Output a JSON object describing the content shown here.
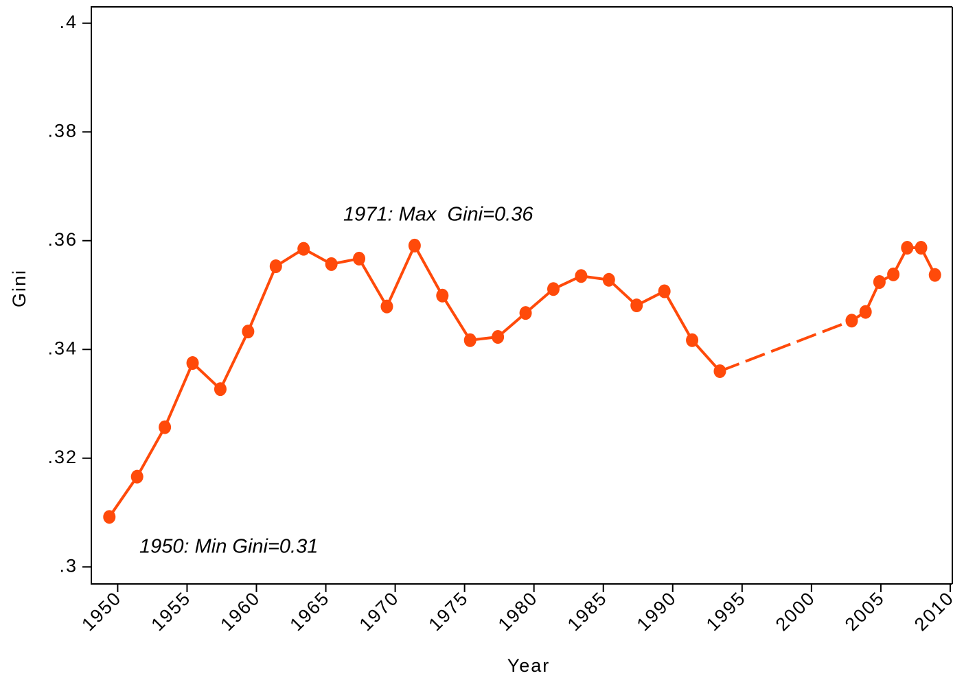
{
  "chart_data": {
    "type": "line",
    "x_label": "Year",
    "y_label": "Gini",
    "annotations": [
      "1971: Max  Gini=0.36",
      "1950: Min Gini=0.31"
    ],
    "xlim": [
      1948.1,
      2010.2
    ],
    "xticks": [
      1950,
      1955,
      1960,
      1965,
      1970,
      1975,
      1980,
      1985,
      1990,
      1995,
      2000,
      2005,
      2010
    ],
    "ylim": [
      0.297,
      0.403
    ],
    "yticks": [
      {
        "value": 0.3,
        "label": ".3"
      },
      {
        "value": 0.32,
        "label": ".32"
      },
      {
        "value": 0.34,
        "label": ".34"
      },
      {
        "value": 0.36,
        "label": ".36"
      },
      {
        "value": 0.38,
        "label": ".38"
      },
      {
        "value": 0.4,
        "label": ".4"
      }
    ],
    "grid": false,
    "series": [
      {
        "name": "Gini",
        "color": "#ff4a0a",
        "x": [
          1949.4,
          1951.4,
          1953.4,
          1955.4,
          1957.4,
          1959.4,
          1961.4,
          1963.4,
          1965.4,
          1967.4,
          1969.4,
          1971.4,
          1973.4,
          1975.4,
          1977.4,
          1979.4,
          1981.4,
          1983.4,
          1985.4,
          1987.4,
          1989.4,
          1991.4,
          1993.4,
          2002.9,
          2003.9,
          2004.9,
          2005.9,
          2006.9,
          2007.9,
          2008.9
        ],
        "values": [
          0.3092,
          0.3166,
          0.3257,
          0.3375,
          0.3327,
          0.3433,
          0.3553,
          0.3585,
          0.3557,
          0.3567,
          0.3479,
          0.3591,
          0.3499,
          0.3417,
          0.3423,
          0.3467,
          0.3511,
          0.3535,
          0.3528,
          0.3481,
          0.3507,
          0.3417,
          0.336,
          0.3453,
          0.3469,
          0.3524,
          0.3538,
          0.3587,
          0.3587,
          0.3537
        ]
      }
    ]
  }
}
